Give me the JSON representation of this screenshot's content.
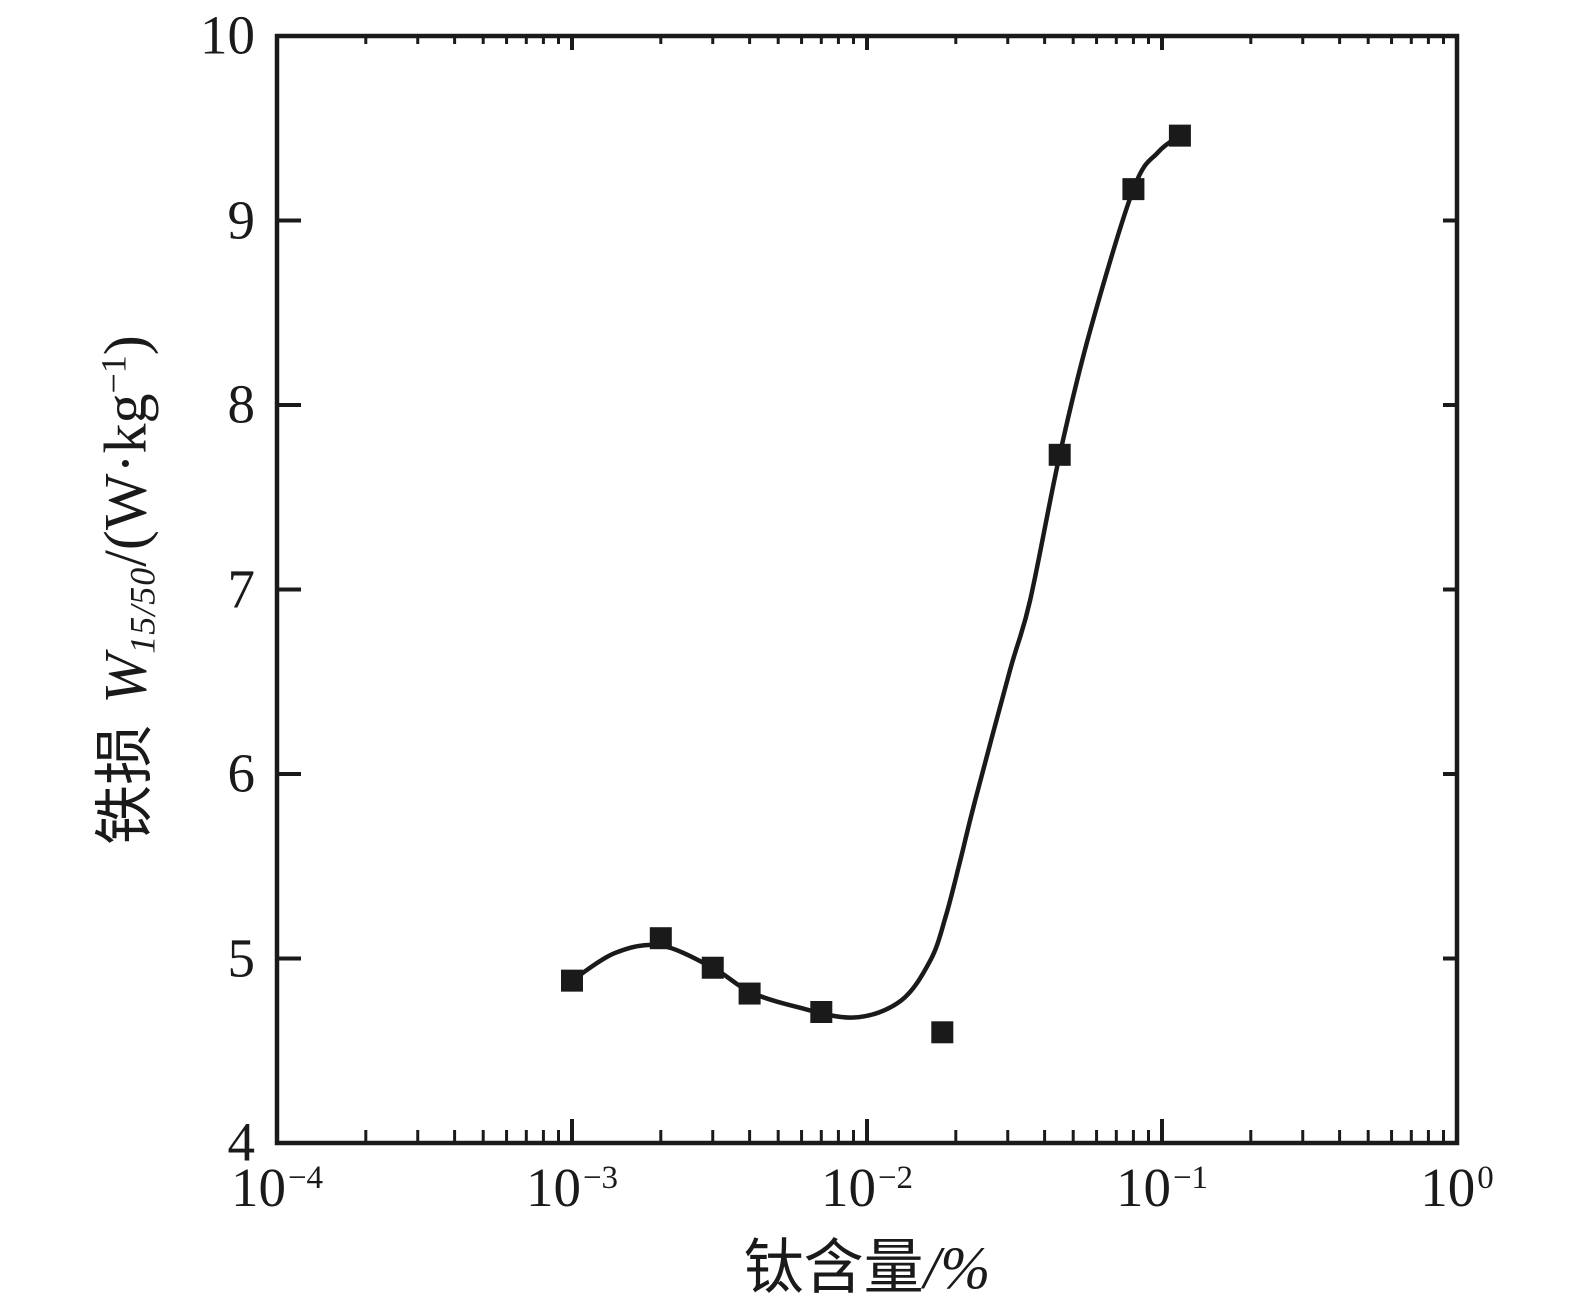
{
  "chart_data": {
    "type": "scatter",
    "title": "",
    "x_scale": "log",
    "x_range": [
      0.0001,
      1
    ],
    "y_range": [
      4,
      10
    ],
    "grid": false,
    "legend": "none",
    "xlabel": {
      "text": "钛含量",
      "unit": "/%"
    },
    "ylabel": {
      "prefix": "铁损",
      "symbol": "W",
      "subscript": "15/50",
      "mid": "/(W·kg",
      "sup": "−1",
      "end": ")"
    },
    "x_ticks": [
      {
        "value": 0.0001,
        "base": "10",
        "exp": "−4"
      },
      {
        "value": 0.001,
        "base": "10",
        "exp": "−3"
      },
      {
        "value": 0.01,
        "base": "10",
        "exp": "−2"
      },
      {
        "value": 0.1,
        "base": "10",
        "exp": "−1"
      },
      {
        "value": 1,
        "base": "10",
        "exp": "0"
      }
    ],
    "y_ticks": [
      {
        "value": 4,
        "label": "4"
      },
      {
        "value": 5,
        "label": "5"
      },
      {
        "value": 6,
        "label": "6"
      },
      {
        "value": 7,
        "label": "7"
      },
      {
        "value": 8,
        "label": "8"
      },
      {
        "value": 9,
        "label": "9"
      },
      {
        "value": 10,
        "label": "10"
      }
    ],
    "points": [
      [
        0.001,
        4.88
      ],
      [
        0.002,
        5.11
      ],
      [
        0.003,
        4.95
      ],
      [
        0.004,
        4.81
      ],
      [
        0.007,
        4.71
      ],
      [
        0.018,
        4.6
      ],
      [
        0.045,
        7.73
      ],
      [
        0.08,
        9.17
      ],
      [
        0.115,
        9.46
      ]
    ],
    "curve": [
      [
        0.001,
        4.88
      ],
      [
        0.0014,
        5.03
      ],
      [
        0.002,
        5.07
      ],
      [
        0.003,
        4.95
      ],
      [
        0.004,
        4.82
      ],
      [
        0.0057,
        4.74
      ],
      [
        0.009,
        4.68
      ],
      [
        0.013,
        4.77
      ],
      [
        0.0164,
        4.99
      ],
      [
        0.0185,
        5.23
      ],
      [
        0.0207,
        5.53
      ],
      [
        0.0232,
        5.85
      ],
      [
        0.0305,
        6.56
      ],
      [
        0.0357,
        6.94
      ],
      [
        0.045,
        7.73
      ],
      [
        0.057,
        8.4
      ],
      [
        0.08,
        9.17
      ],
      [
        0.097,
        9.37
      ],
      [
        0.115,
        9.46
      ]
    ],
    "marker_size": 22,
    "colors": {
      "line": "#1a1a1a",
      "marker": "#1a1a1a",
      "frame": "#1a1a1a",
      "background": "#ffffff"
    }
  }
}
